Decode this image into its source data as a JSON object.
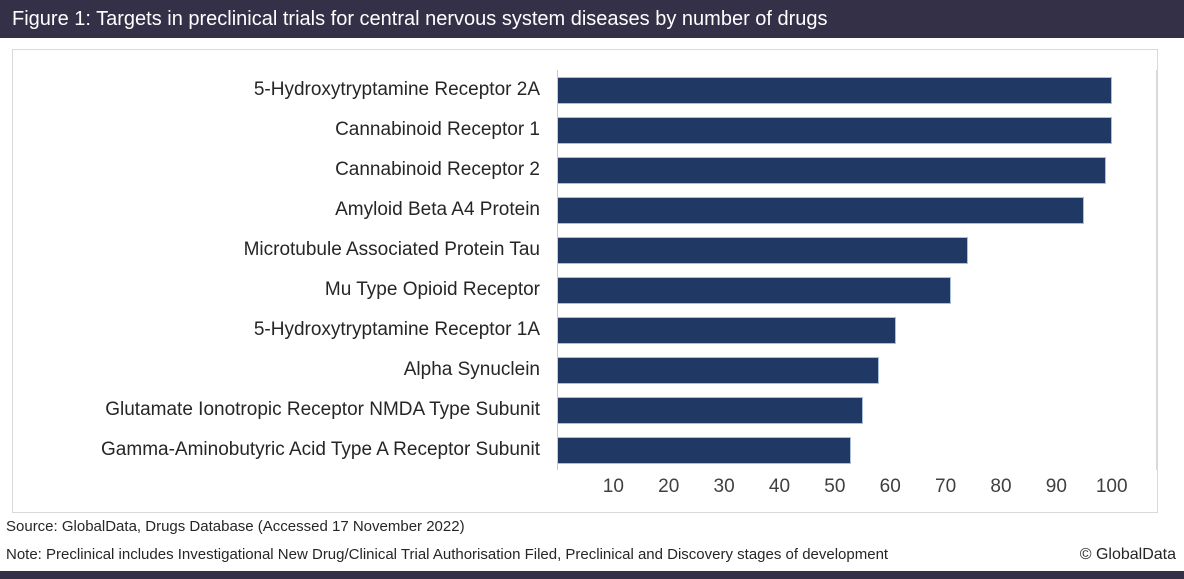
{
  "title": "Figure 1: Targets in preclinical trials for central nervous system diseases by number of drugs",
  "footer": {
    "source": "Source: GlobalData, Drugs Database (Accessed 17 November 2022)",
    "note": "Note: Preclinical includes Investigational New Drug/Clinical Trial Authorisation Filed, Preclinical and Discovery stages of development",
    "copyright": "© GlobalData"
  },
  "colors": {
    "title_bar_bg": "#333048",
    "title_text": "#ffffff",
    "bar_fill": "#1f3864",
    "bar_outline": "#a9bfdb",
    "chart_border": "#d9d9d9",
    "axis_line": "#c9c9c9",
    "axis_text": "#404040",
    "label_text": "#262626",
    "bottom_strip": "#333048"
  },
  "chart_data": {
    "type": "bar",
    "orientation": "horizontal",
    "title": "Targets in preclinical trials for central nervous system diseases by number of drugs",
    "xlabel": "",
    "ylabel": "",
    "categories": [
      "5-Hydroxytryptamine Receptor 2A",
      "Cannabinoid Receptor 1",
      "Cannabinoid Receptor 2",
      "Amyloid Beta A4 Protein",
      "Microtubule Associated Protein Tau",
      "Mu Type Opioid Receptor",
      "5-Hydroxytryptamine Receptor 1A",
      "Alpha Synuclein",
      "Glutamate Ionotropic Receptor NMDA Type Subunit",
      "Gamma-Aminobutyric Acid Type A Receptor Subunit"
    ],
    "values": [
      100,
      100,
      99,
      95,
      74,
      71,
      61,
      58,
      55,
      53
    ],
    "x_ticks": [
      10,
      20,
      30,
      40,
      50,
      60,
      70,
      80,
      90,
      100
    ],
    "xlim": [
      0,
      108
    ],
    "grid": false,
    "legend": false
  }
}
